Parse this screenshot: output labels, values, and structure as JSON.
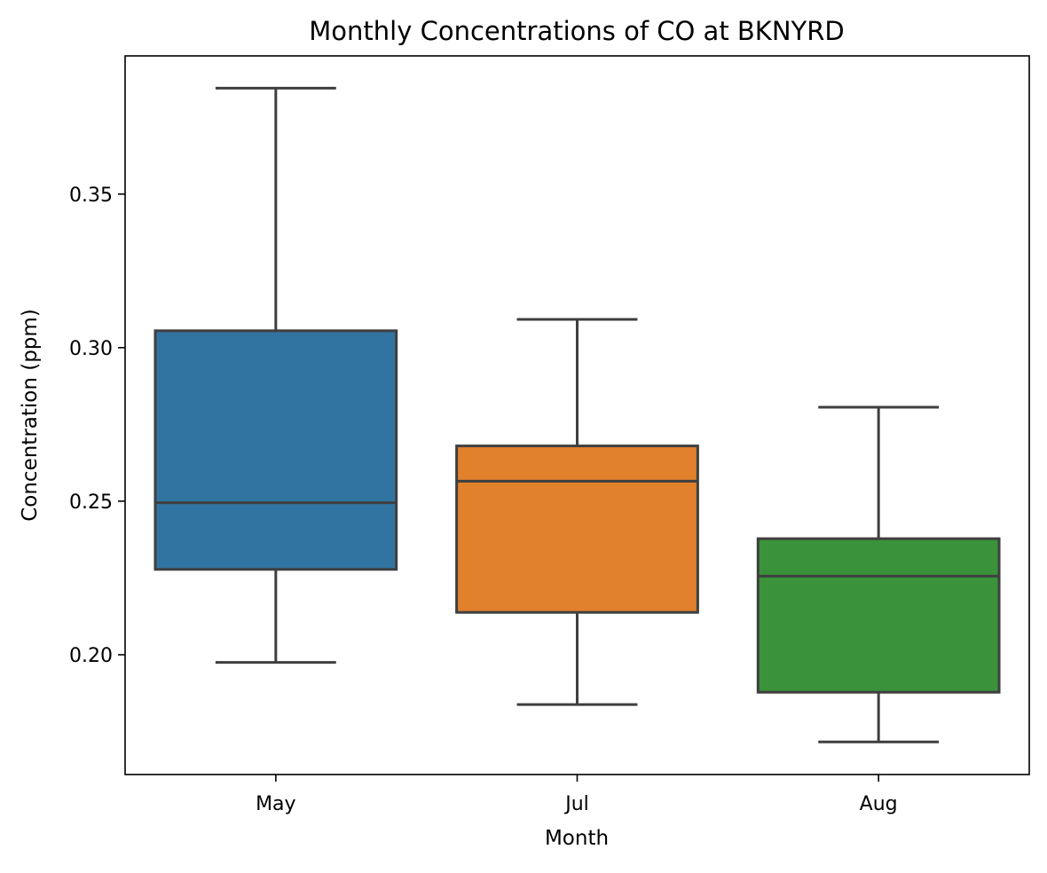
{
  "chart_data": {
    "type": "box",
    "title": "Monthly Concentrations of CO at BKNYRD",
    "xlabel": "Month",
    "ylabel": "Concentration (ppm)",
    "ylim": [
      0.161,
      0.395
    ],
    "yticks": [
      0.2,
      0.25,
      0.3,
      0.35
    ],
    "ytick_labels": [
      "0.20",
      "0.25",
      "0.30",
      "0.35"
    ],
    "grid": false,
    "categories": [
      "May",
      "Jul",
      "Aug"
    ],
    "boxes": [
      {
        "category": "May",
        "whisker_low": 0.1975,
        "q1": 0.2278,
        "median": 0.2495,
        "q3": 0.3055,
        "whisker_high": 0.3845,
        "color": "#3274a1"
      },
      {
        "category": "Jul",
        "whisker_low": 0.1838,
        "q1": 0.2138,
        "median": 0.2565,
        "q3": 0.268,
        "whisker_high": 0.3092,
        "color": "#e1812c"
      },
      {
        "category": "Aug",
        "whisker_low": 0.1716,
        "q1": 0.1878,
        "median": 0.2256,
        "q3": 0.2378,
        "whisker_high": 0.2806,
        "color": "#3a923a"
      }
    ],
    "line_color": "#3f3f3f"
  }
}
